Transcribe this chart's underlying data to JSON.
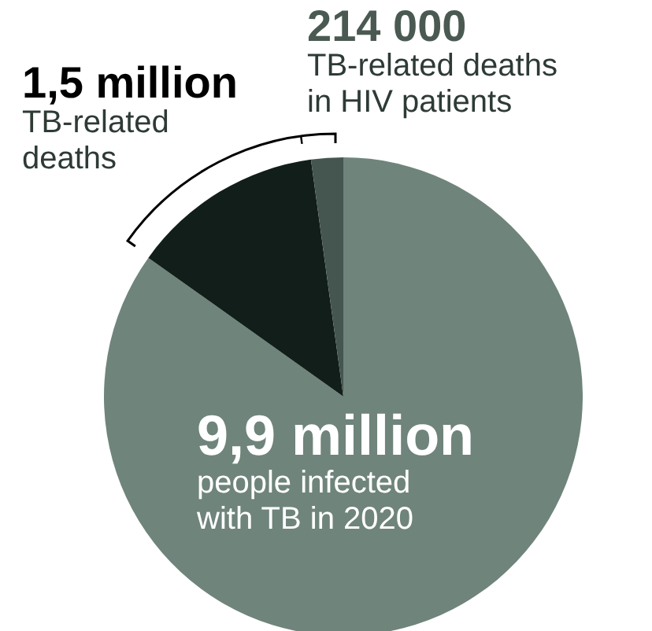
{
  "chart_data": {
    "type": "pie",
    "categories": [
      "people infected with TB in 2020",
      "TB-related deaths",
      "TB-related deaths in HIV patients"
    ],
    "values": [
      84.85,
      12.99,
      2.16
    ],
    "colors": [
      "#6f847b",
      "#111e19",
      "#45554f"
    ],
    "annotations": [
      "9,9 million",
      "1,5 million",
      "214 000"
    ]
  }
}
